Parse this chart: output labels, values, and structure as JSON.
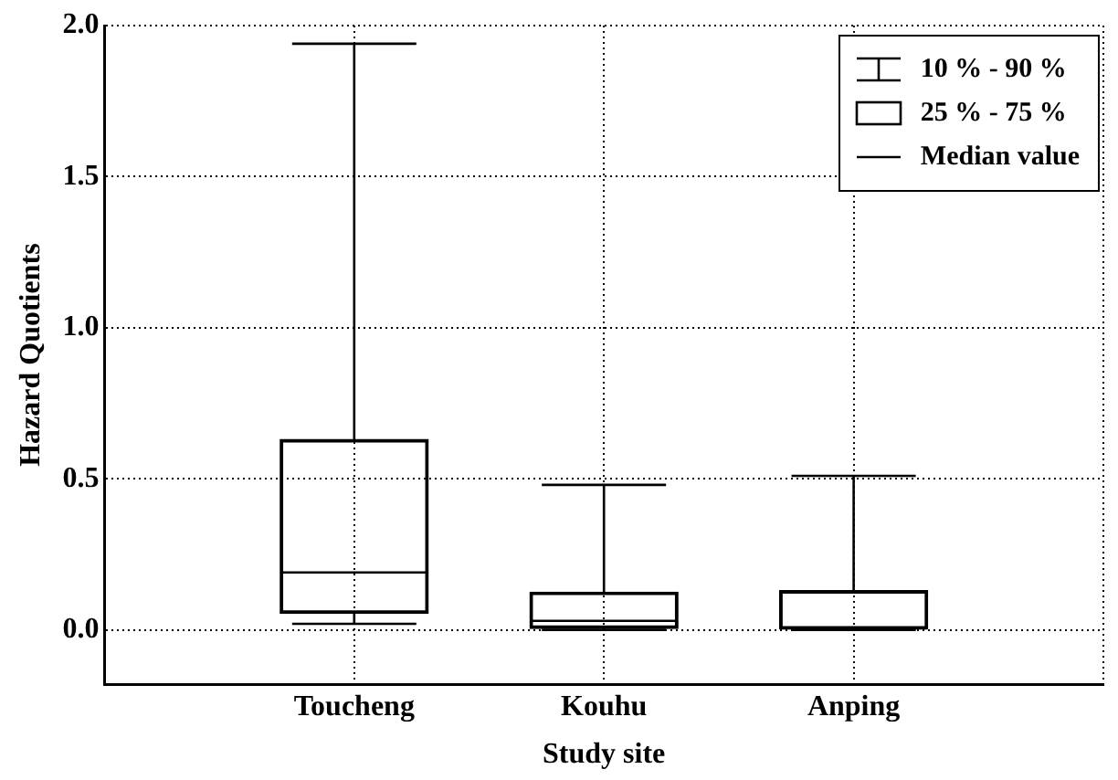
{
  "chart_data": {
    "type": "box",
    "xlabel": "Study site",
    "ylabel": "Hazard Quotients",
    "categories": [
      "Toucheng",
      "Kouhu",
      "Anping"
    ],
    "boxes": [
      {
        "low": 0.02,
        "q1": 0.055,
        "median": 0.19,
        "q3": 0.63,
        "high": 1.94
      },
      {
        "low": 0.0,
        "q1": 0.005,
        "median": 0.03,
        "q3": 0.125,
        "high": 0.48
      },
      {
        "low": 0.0,
        "q1": 0.0,
        "median": 0.005,
        "q3": 0.13,
        "high": 0.51
      }
    ],
    "color": "#000000",
    "ylim": [
      -0.18,
      2.0
    ],
    "yticks": [
      {
        "value": 0,
        "label": "0.0"
      },
      {
        "value": 0.5,
        "label": "0.5"
      },
      {
        "value": 1,
        "label": "1.0"
      },
      {
        "value": 1.5,
        "label": "1.5"
      },
      {
        "value": 2,
        "label": "2.0"
      }
    ],
    "grid": true,
    "annotations": [
      "10 % - 90 %",
      "25 % - 75 %",
      "Median value"
    ]
  }
}
